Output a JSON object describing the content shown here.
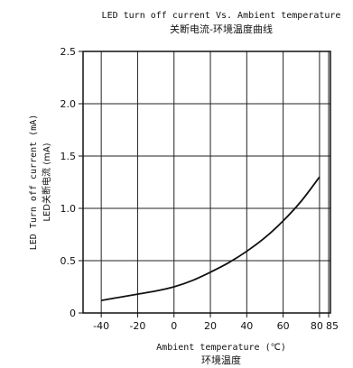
{
  "chart_data": {
    "type": "line",
    "title": "LED turn off current Vs. Ambient temperature",
    "subtitle": "关断电流-环境温度曲线",
    "xlabel": "Ambient temperature (℃)",
    "xlabel_cn": "环境温度",
    "ylabel": "LED Turn off current (mA)",
    "ylabel_cn": "LED关断电流 (mA)",
    "xlim": [
      -50,
      86
    ],
    "ylim": [
      0,
      2.5
    ],
    "x_ticks": [
      "-40",
      "-20",
      "0",
      "20",
      "40",
      "60",
      "80",
      "85"
    ],
    "y_ticks": [
      "0",
      "0.5",
      "1.0",
      "1.5",
      "2.0",
      "2.5"
    ],
    "grid": true,
    "series": [
      {
        "color": "#111111",
        "x": [
          -40,
          -30,
          -20,
          -10,
          0,
          10,
          20,
          30,
          40,
          50,
          60,
          70,
          80
        ],
        "y": [
          0.12,
          0.15,
          0.18,
          0.21,
          0.25,
          0.31,
          0.39,
          0.48,
          0.59,
          0.72,
          0.88,
          1.07,
          1.3
        ]
      }
    ]
  }
}
